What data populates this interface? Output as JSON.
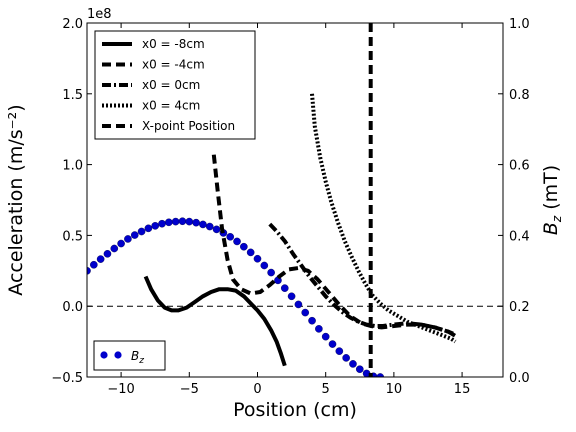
{
  "chart_data": {
    "type": "line",
    "xlabel": "Position (cm)",
    "ylabel": "Acceleration (m/s⁻²)",
    "y2label": "B_z (mT)",
    "offset_text": "1e8",
    "xlim": [
      -12.5,
      18
    ],
    "ylim": [
      -0.5,
      2.0
    ],
    "y2lim": [
      0.0,
      1.0
    ],
    "x_ticks": [
      -10,
      -5,
      0,
      5,
      10,
      15
    ],
    "y_ticks": [
      -0.5,
      0.0,
      0.5,
      1.0,
      1.5,
      2.0
    ],
    "y2_ticks": [
      0.0,
      0.2,
      0.4,
      0.6,
      0.8,
      1.0
    ],
    "y_tick_labels": [
      "−0.5",
      "0.0",
      "0.5",
      "1.0",
      "1.5",
      "2.0"
    ],
    "x_tick_labels": [
      "−10",
      "−5",
      "0",
      "5",
      "10",
      "15"
    ],
    "y2_tick_labels": [
      "0.0",
      "0.2",
      "0.4",
      "0.6",
      "0.8",
      "1.0"
    ],
    "zero_line": 0.0,
    "xpoint_position": 8.3,
    "series": [
      {
        "name": "x0 = -8cm",
        "style": "solid",
        "width": 4,
        "x": [
          -8.2,
          -7.8,
          -7.3,
          -6.8,
          -6.3,
          -5.8,
          -5.2,
          -4.6,
          -4.0,
          -3.4,
          -2.8,
          -2.2,
          -1.6,
          -1.0,
          -0.5,
          0.0,
          0.5,
          1.0,
          1.4,
          1.7,
          2.0
        ],
        "y": [
          0.21,
          0.12,
          0.04,
          -0.01,
          -0.03,
          -0.03,
          -0.01,
          0.03,
          0.07,
          0.1,
          0.12,
          0.12,
          0.11,
          0.07,
          0.02,
          -0.03,
          -0.09,
          -0.17,
          -0.25,
          -0.33,
          -0.42
        ]
      },
      {
        "name": "x0 = -4cm",
        "style": "dashed",
        "width": 4,
        "x": [
          -3.2,
          -2.9,
          -2.6,
          -2.2,
          -1.8,
          -1.2,
          -0.5,
          0.2,
          0.9,
          1.6,
          2.3,
          3.0,
          3.7,
          4.4,
          5.2,
          6.0,
          6.8,
          7.6,
          8.3,
          9.1,
          10.0,
          11.0,
          12.0,
          13.0,
          14.0,
          14.5
        ],
        "y": [
          1.07,
          0.8,
          0.55,
          0.33,
          0.19,
          0.12,
          0.09,
          0.1,
          0.15,
          0.21,
          0.26,
          0.27,
          0.25,
          0.19,
          0.1,
          0.01,
          -0.07,
          -0.12,
          -0.14,
          -0.15,
          -0.14,
          -0.13,
          -0.13,
          -0.15,
          -0.18,
          -0.21
        ]
      },
      {
        "name": "x0 =  0cm",
        "style": "dashdot",
        "width": 4,
        "x": [
          0.9,
          1.4,
          2.0,
          2.6,
          3.2,
          3.8,
          4.4,
          5.0,
          5.6,
          6.2,
          6.8,
          7.4,
          8.0,
          8.6,
          9.2,
          10.0,
          11.0,
          12.0,
          13.0,
          14.0,
          14.5
        ],
        "y": [
          0.58,
          0.53,
          0.46,
          0.37,
          0.29,
          0.21,
          0.14,
          0.07,
          0.01,
          -0.04,
          -0.08,
          -0.11,
          -0.13,
          -0.14,
          -0.14,
          -0.13,
          -0.12,
          -0.13,
          -0.15,
          -0.18,
          -0.2
        ]
      },
      {
        "name": "x0 =  4cm",
        "style": "dotted",
        "width": 4,
        "x": [
          4.0,
          4.2,
          4.6,
          5.0,
          5.4,
          5.9,
          6.4,
          6.9,
          7.4,
          7.9,
          8.4,
          9.0,
          9.6,
          10.3,
          11.0,
          11.8,
          12.6,
          13.4,
          14.2,
          14.5
        ],
        "y": [
          1.5,
          1.27,
          1.05,
          0.88,
          0.74,
          0.59,
          0.46,
          0.35,
          0.25,
          0.16,
          0.08,
          0.02,
          -0.03,
          -0.07,
          -0.11,
          -0.14,
          -0.17,
          -0.2,
          -0.23,
          -0.25
        ]
      }
    ],
    "xpoint_legend": "X-point Position",
    "bz_series": {
      "name": "B_z",
      "axis": "right",
      "color": "#0000cc",
      "x": [
        -12.5,
        -12.0,
        -11.5,
        -11.0,
        -10.5,
        -10.0,
        -9.5,
        -9.0,
        -8.5,
        -8.0,
        -7.5,
        -7.0,
        -6.5,
        -6.0,
        -5.5,
        -5.0,
        -4.5,
        -4.0,
        -3.5,
        -3.0,
        -2.5,
        -2.0,
        -1.5,
        -1.0,
        -0.5,
        0.0,
        0.5,
        1.0,
        1.5,
        2.0,
        2.5,
        3.0,
        3.5,
        4.0,
        4.5,
        5.0,
        5.5,
        6.0,
        6.5,
        7.0,
        7.5,
        8.0,
        8.5,
        9.0
      ],
      "y": [
        0.3,
        0.317,
        0.333,
        0.348,
        0.363,
        0.377,
        0.39,
        0.401,
        0.411,
        0.42,
        0.427,
        0.433,
        0.437,
        0.439,
        0.44,
        0.439,
        0.436,
        0.431,
        0.425,
        0.417,
        0.407,
        0.396,
        0.383,
        0.368,
        0.352,
        0.334,
        0.315,
        0.295,
        0.273,
        0.251,
        0.228,
        0.205,
        0.182,
        0.159,
        0.136,
        0.114,
        0.093,
        0.073,
        0.054,
        0.037,
        0.022,
        0.01,
        0.002,
        0.0
      ]
    },
    "legend_position": "upper-left",
    "bz_legend_position": "lower-left",
    "grid": false
  }
}
